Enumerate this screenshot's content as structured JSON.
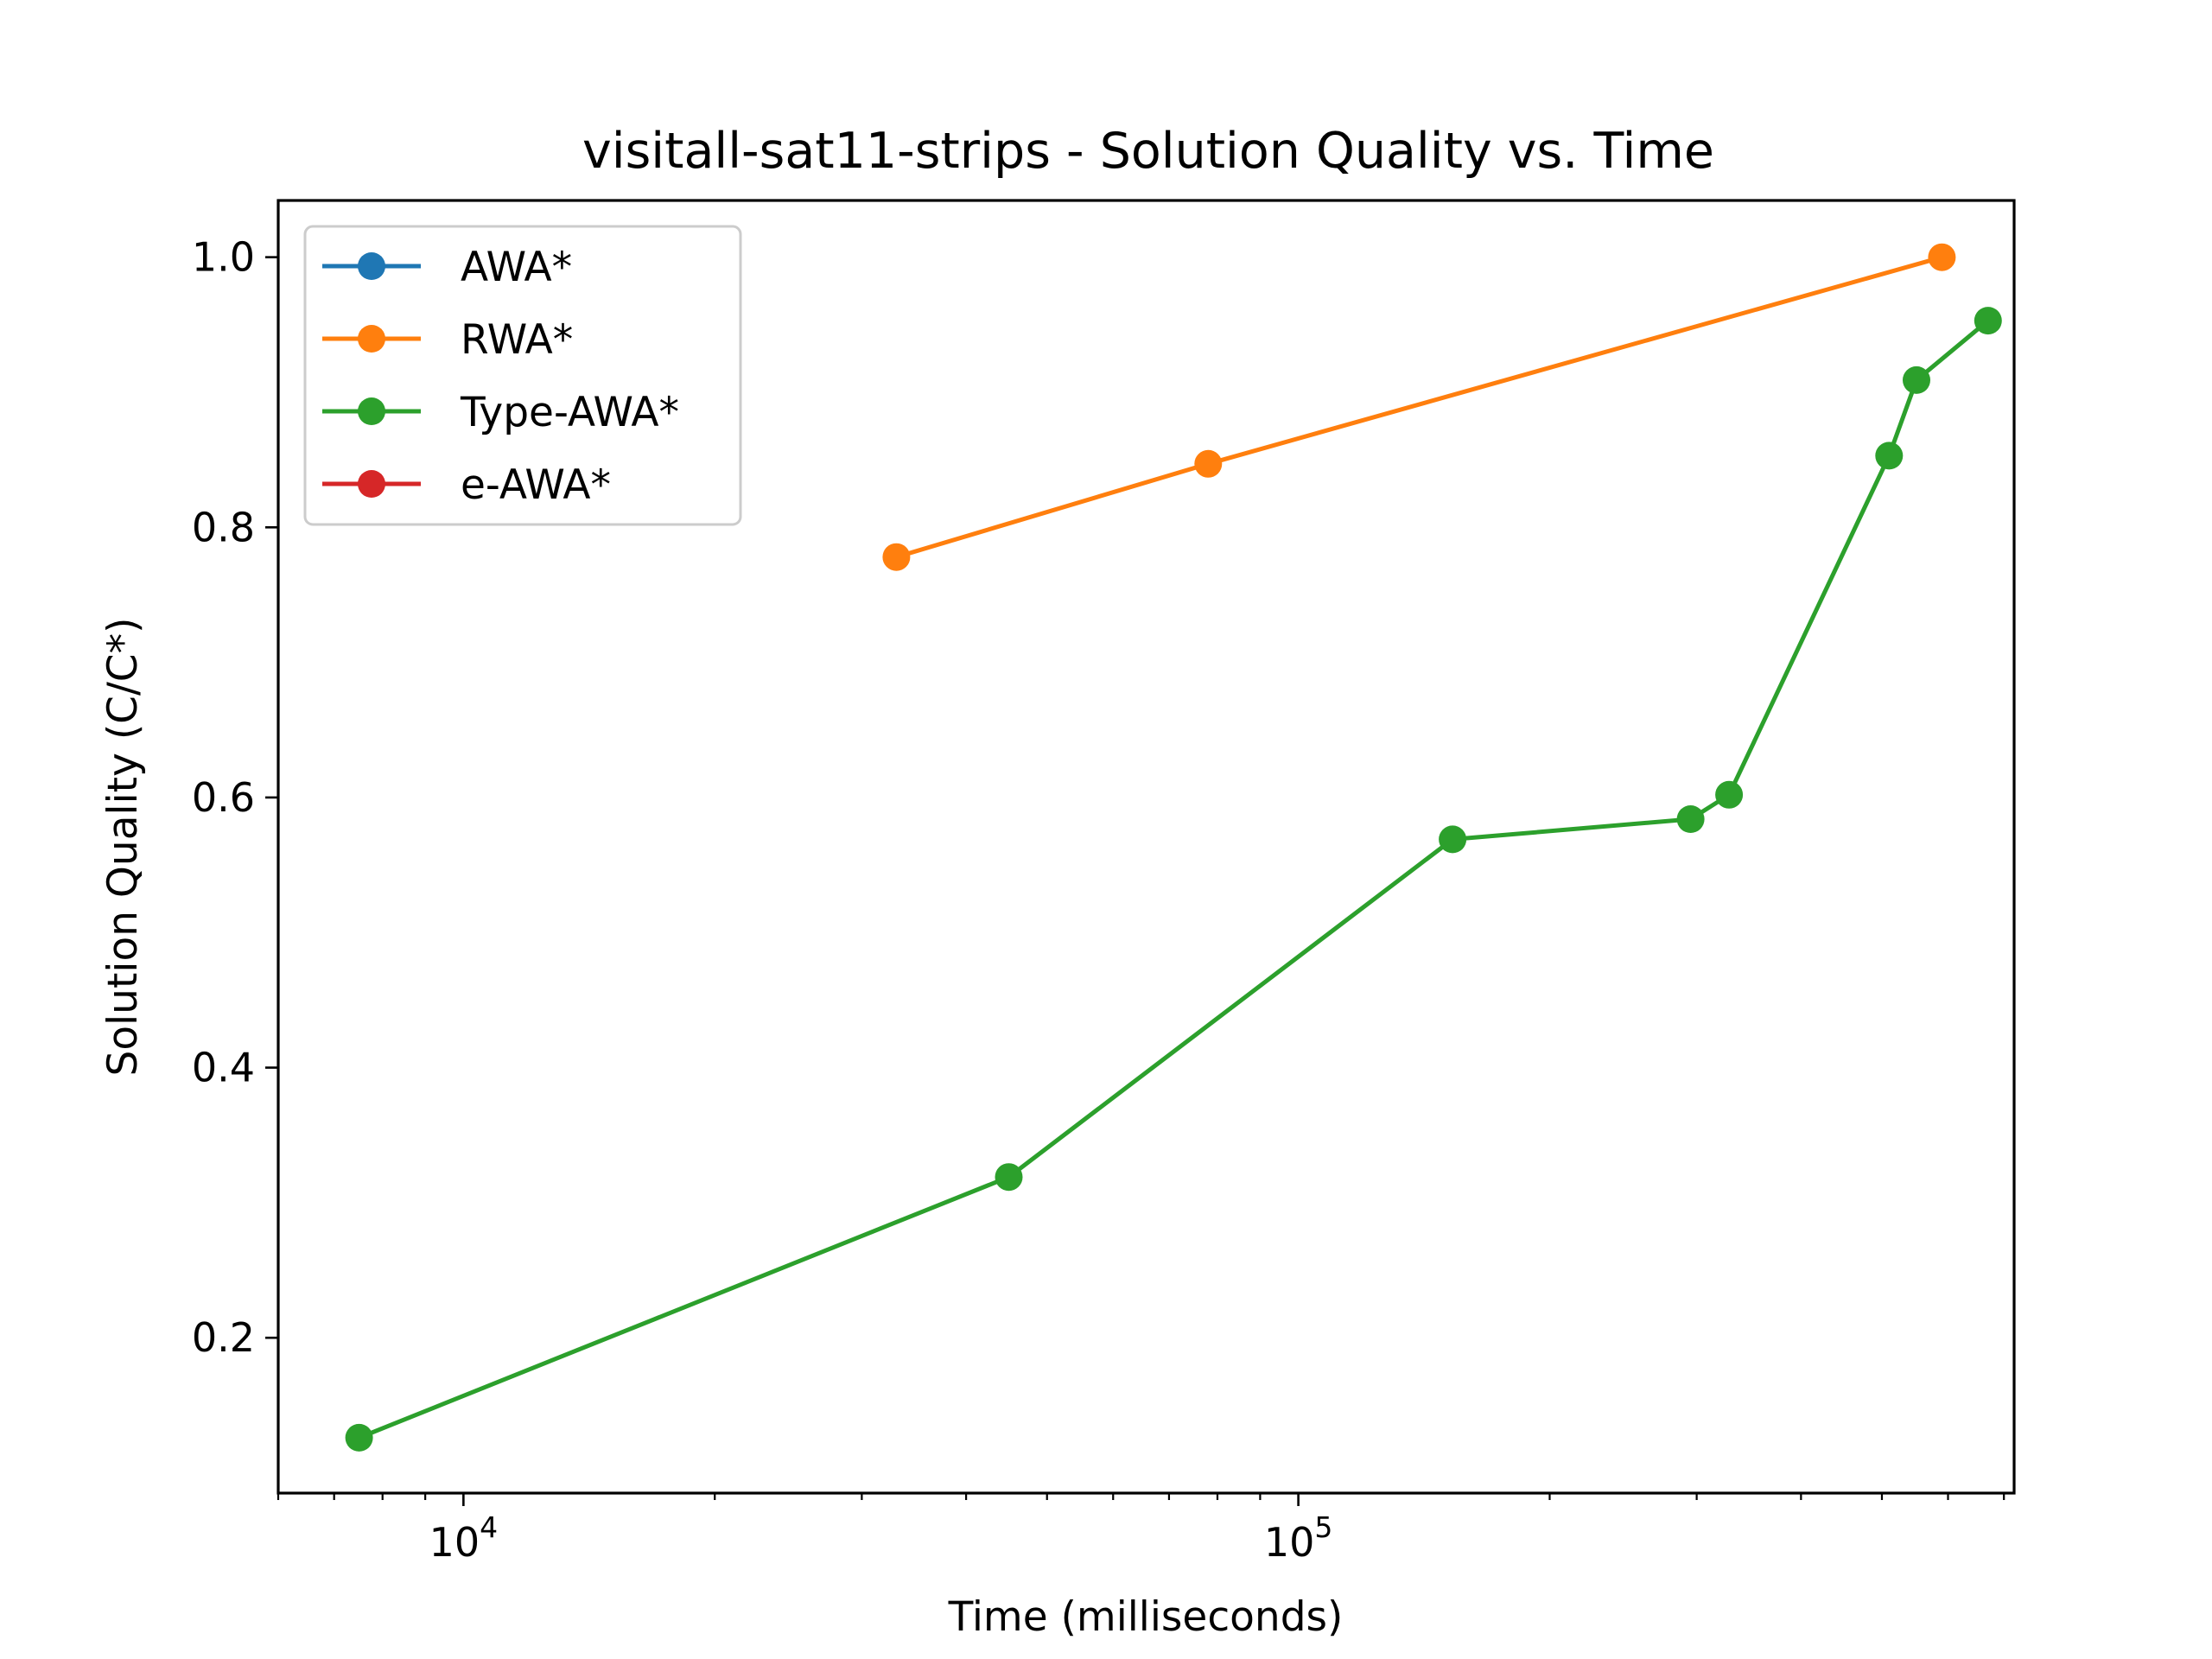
{
  "chart_data": {
    "type": "line",
    "title": "visitall-sat11-strips - Solution Quality vs. Time",
    "xlabel": "Time (milliseconds)",
    "ylabel": "Solution Quality (C/C*)",
    "xscale": "log",
    "xlim": [
      6000,
      720000
    ],
    "ylim": [
      0.085,
      1.042
    ],
    "grid": false,
    "legend_position": "top-left",
    "x_ticks": [
      {
        "value": 10000,
        "base": "10",
        "exponent": "4"
      },
      {
        "value": 100000,
        "base": "10",
        "exponent": "5"
      }
    ],
    "y_ticks": [
      {
        "value": 0.2,
        "label": "0.2"
      },
      {
        "value": 0.4,
        "label": "0.4"
      },
      {
        "value": 0.6,
        "label": "0.6"
      },
      {
        "value": 0.8,
        "label": "0.8"
      },
      {
        "value": 1.0,
        "label": "1.0"
      }
    ],
    "series": [
      {
        "name": "AWA*",
        "color": "#1f77b4",
        "x": [],
        "y": []
      },
      {
        "name": "RWA*",
        "color": "#ff7f0e",
        "x": [
          33000,
          78000,
          590000
        ],
        "y": [
          0.778,
          0.847,
          1.0
        ]
      },
      {
        "name": "Type-AWA*",
        "color": "#2ca02c",
        "x": [
          7500,
          45000,
          153000,
          295000,
          328000,
          510000,
          550000,
          670000
        ],
        "y": [
          0.126,
          0.319,
          0.569,
          0.584,
          0.602,
          0.853,
          0.909,
          0.953
        ]
      },
      {
        "name": "e-AWA*",
        "color": "#d62728",
        "x": [],
        "y": []
      }
    ]
  }
}
